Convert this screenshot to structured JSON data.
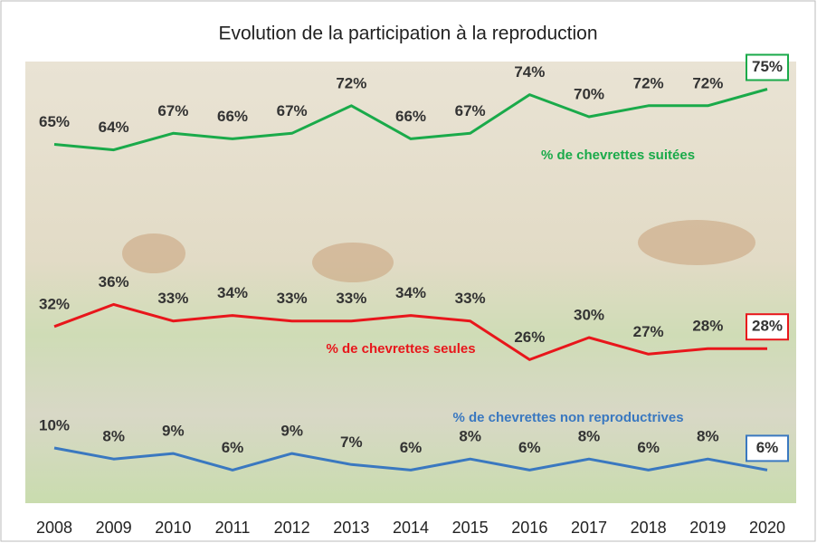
{
  "chart_data": {
    "type": "line",
    "title": "Evolution de la participation à la reproduction",
    "categories": [
      "2008",
      "2009",
      "2010",
      "2011",
      "2012",
      "2013",
      "2014",
      "2015",
      "2016",
      "2017",
      "2018",
      "2019",
      "2020"
    ],
    "ylim": [
      0,
      80
    ],
    "series": [
      {
        "name": "% de chevrettes suitées",
        "color": "#1aaa4a",
        "values": [
          65,
          64,
          67,
          66,
          67,
          72,
          66,
          67,
          74,
          70,
          72,
          72,
          75
        ],
        "value_labels": [
          "65%",
          "64%",
          "67%",
          "66%",
          "67%",
          "72%",
          "66%",
          "67%",
          "74%",
          "70%",
          "72%",
          "72%",
          "75%"
        ]
      },
      {
        "name": "% de chevrettes seules",
        "color": "#e8161b",
        "values": [
          32,
          36,
          33,
          34,
          33,
          33,
          34,
          33,
          26,
          30,
          27,
          28,
          28
        ],
        "value_labels": [
          "32%",
          "36%",
          "33%",
          "34%",
          "33%",
          "33%",
          "34%",
          "33%",
          "26%",
          "30%",
          "27%",
          "28%",
          "28%"
        ]
      },
      {
        "name": "% de chevrettes non reproductrives",
        "color": "#3a78c0",
        "values": [
          10,
          8,
          9,
          6,
          9,
          7,
          6,
          8,
          6,
          8,
          6,
          8,
          6
        ],
        "value_labels": [
          "10%",
          "8%",
          "9%",
          "6%",
          "9%",
          "7%",
          "6%",
          "8%",
          "6%",
          "8%",
          "6%",
          "8%",
          "6%"
        ]
      }
    ]
  }
}
